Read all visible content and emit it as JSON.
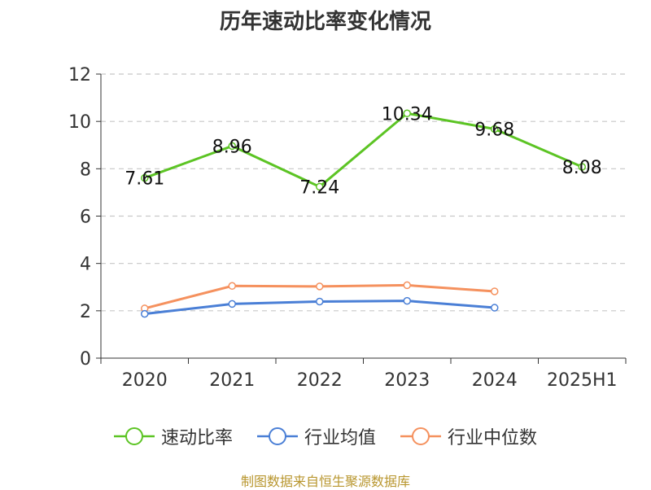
{
  "chart_data": {
    "type": "line",
    "title": "历年速动比率变化情况",
    "categories": [
      "2020",
      "2021",
      "2022",
      "2023",
      "2024",
      "2025H1"
    ],
    "ylim": [
      0,
      12
    ],
    "yticks": [
      0,
      2,
      4,
      6,
      8,
      10,
      12
    ],
    "grid": "horizontal dashed",
    "legend_position": "bottom",
    "series": [
      {
        "name": "速动比率",
        "color": "#5cc424",
        "values": [
          7.61,
          8.96,
          7.24,
          10.34,
          9.68,
          8.08
        ],
        "labels": [
          "7.61",
          "8.96",
          "7.24",
          "10.34",
          "9.68",
          "8.08"
        ],
        "show_labels": true
      },
      {
        "name": "行业均值",
        "color": "#4a7fd6",
        "values": [
          1.87,
          2.29,
          2.39,
          2.42,
          2.13,
          null
        ],
        "show_labels": false
      },
      {
        "name": "行业中位数",
        "color": "#f5915e",
        "values": [
          2.1,
          3.05,
          3.03,
          3.08,
          2.82,
          null
        ],
        "show_labels": false
      }
    ]
  },
  "source": "制图数据来自恒生聚源数据库"
}
